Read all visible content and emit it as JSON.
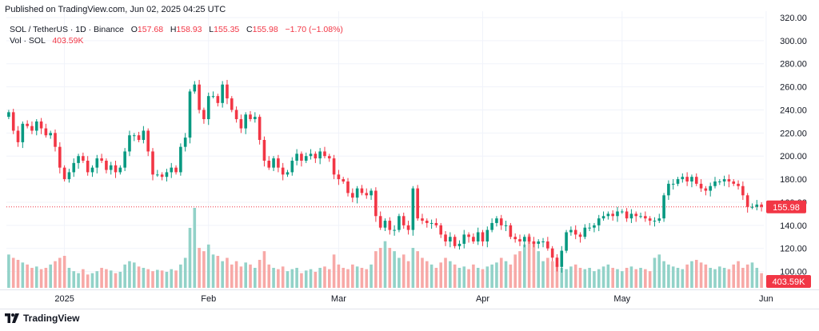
{
  "header": {
    "published": "Published on TradingView.com, Jun 02, 2025 04:25 UTC"
  },
  "legend": {
    "symbol": "SOL / TetherUS · 1D · Binance",
    "o_label": "O",
    "o_value": "157.68",
    "h_label": "H",
    "h_value": "158.93",
    "l_label": "L",
    "l_value": "155.35",
    "c_label": "C",
    "c_value": "155.98",
    "change": "−1.70 (−1.08%)",
    "vol_label": "Vol · SOL",
    "vol_value": "403.59K"
  },
  "footer": {
    "brand": "TradingView"
  },
  "colors": {
    "up": "#089981",
    "down": "#f23645",
    "vol_up": "#92d2c8",
    "vol_down": "#f7a9a7",
    "grid": "#f0f3fa",
    "text": "#131722"
  },
  "chart_data": {
    "type": "candlestick",
    "title": "SOL / TetherUS · 1D · Binance",
    "ylim": [
      90,
      320
    ],
    "y_ticks": [
      100,
      120,
      140,
      160,
      180,
      200,
      220,
      240,
      260,
      280,
      300,
      320
    ],
    "y_tick_labels": [
      "100.00",
      "120.00",
      "140.00",
      "160.00",
      "180.00",
      "200.00",
      "220.00",
      "240.00",
      "260.00",
      "280.00",
      "300.00",
      "320.00"
    ],
    "x_labels": [
      {
        "label": "2025",
        "index": 12
      },
      {
        "label": "Feb",
        "index": 43
      },
      {
        "label": "Mar",
        "index": 71
      },
      {
        "label": "Apr",
        "index": 102
      },
      {
        "label": "May",
        "index": 132
      },
      {
        "label": "Jun",
        "index": 163
      }
    ],
    "last_price": 155.98,
    "last_price_label": "155.98",
    "last_volume_label": "403.59K",
    "closes": [
      238,
      222,
      212,
      228,
      226,
      222,
      230,
      224,
      218,
      220,
      208,
      190,
      180,
      186,
      194,
      200,
      196,
      186,
      190,
      198,
      196,
      188,
      192,
      186,
      190,
      204,
      218,
      218,
      214,
      222,
      204,
      184,
      184,
      182,
      186,
      190,
      186,
      208,
      216,
      256,
      262,
      240,
      232,
      252,
      252,
      246,
      262,
      250,
      240,
      232,
      224,
      236,
      232,
      234,
      214,
      196,
      190,
      198,
      190,
      184,
      186,
      196,
      202,
      196,
      200,
      202,
      198,
      204,
      200,
      198,
      184,
      180,
      178,
      168,
      164,
      172,
      168,
      166,
      170,
      148,
      138,
      144,
      136,
      136,
      148,
      140,
      136,
      172,
      146,
      144,
      142,
      142,
      140,
      132,
      126,
      130,
      122,
      124,
      132,
      130,
      126,
      134,
      126,
      136,
      142,
      146,
      140,
      140,
      130,
      128,
      126,
      130,
      126,
      124,
      126,
      126,
      120,
      112,
      104,
      118,
      134,
      136,
      132,
      130,
      138,
      138,
      140,
      146,
      148,
      150,
      148,
      152,
      152,
      146,
      150,
      148,
      148,
      146,
      144,
      144,
      146,
      166,
      176,
      176,
      180,
      182,
      178,
      182,
      176,
      172,
      170,
      174,
      178,
      178,
      180,
      178,
      176,
      174,
      166,
      156,
      156,
      158,
      156
    ],
    "volumes": [
      50,
      45,
      42,
      38,
      35,
      30,
      32,
      28,
      30,
      35,
      40,
      45,
      48,
      30,
      25,
      22,
      28,
      20,
      22,
      25,
      30,
      28,
      26,
      22,
      24,
      35,
      40,
      38,
      32,
      30,
      28,
      25,
      27,
      26,
      24,
      28,
      26,
      35,
      45,
      90,
      120,
      60,
      55,
      65,
      50,
      48,
      40,
      45,
      35,
      40,
      32,
      38,
      35,
      30,
      42,
      55,
      35,
      30,
      28,
      32,
      25,
      28,
      30,
      22,
      26,
      28,
      24,
      30,
      32,
      28,
      50,
      35,
      30,
      28,
      35,
      32,
      30,
      28,
      35,
      55,
      60,
      70,
      60,
      55,
      45,
      50,
      40,
      60,
      55,
      45,
      40,
      35,
      30,
      38,
      45,
      40,
      35,
      30,
      32,
      28,
      35,
      30,
      28,
      32,
      35,
      38,
      45,
      40,
      35,
      50,
      55,
      65,
      80,
      70,
      55,
      40,
      45,
      40,
      35,
      30,
      28,
      32,
      35,
      30,
      28,
      30,
      25,
      28,
      32,
      35,
      30,
      28,
      25,
      30,
      32,
      28,
      30,
      28,
      25,
      45,
      50,
      40,
      35,
      32,
      30,
      28,
      35,
      40,
      42,
      38,
      35,
      30,
      28,
      32,
      30,
      28,
      35,
      40,
      30,
      35,
      38,
      30,
      22
    ]
  }
}
